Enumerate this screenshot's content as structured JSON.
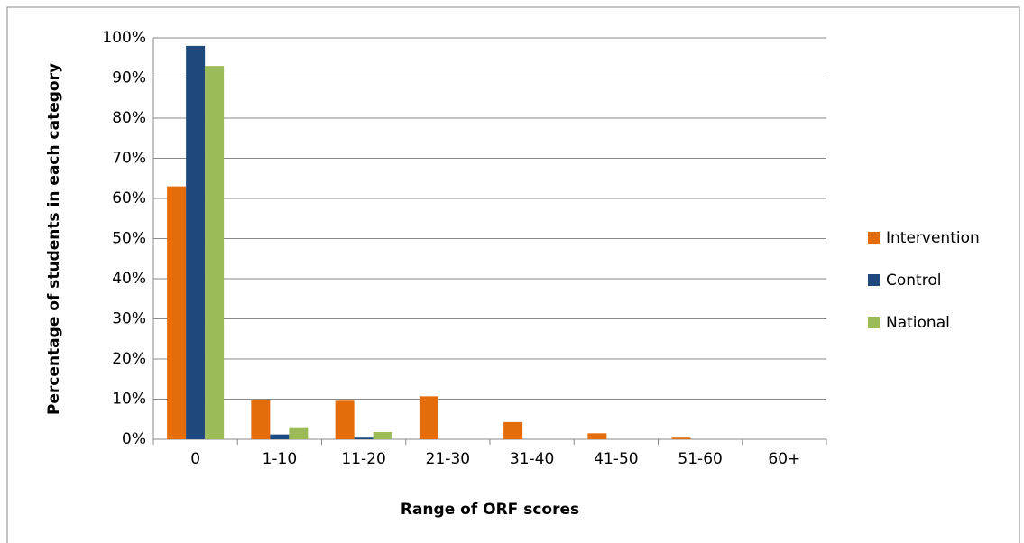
{
  "chart_data": {
    "type": "bar",
    "y_label": "Percentage of students in each category",
    "x_label": "Range of ORF scores",
    "categories": [
      "0",
      "1-10",
      "11-20",
      "21-30",
      "31-40",
      "41-50",
      "51-60",
      "60+"
    ],
    "series": [
      {
        "name": "Intervention",
        "color": "#e46c0a",
        "values": [
          63,
          9.7,
          9.6,
          10.7,
          4.3,
          1.5,
          0.4,
          0
        ]
      },
      {
        "name": "Control",
        "color": "#1f497d",
        "values": [
          98,
          1.2,
          0.4,
          0,
          0,
          0,
          0,
          0
        ]
      },
      {
        "name": "National",
        "color": "#9bbb59",
        "values": [
          93,
          3,
          1.8,
          0,
          0,
          0,
          0,
          0
        ]
      }
    ],
    "ylim": [
      0,
      100
    ],
    "yticks": [
      {
        "value": 0,
        "label": "0%"
      },
      {
        "value": 10,
        "label": "10%"
      },
      {
        "value": 20,
        "label": "20%"
      },
      {
        "value": 30,
        "label": "30%"
      },
      {
        "value": 40,
        "label": "40%"
      },
      {
        "value": 50,
        "label": "50%"
      },
      {
        "value": 60,
        "label": "60%"
      },
      {
        "value": 70,
        "label": "70%"
      },
      {
        "value": 80,
        "label": "80%"
      },
      {
        "value": 90,
        "label": "90%"
      },
      {
        "value": 100,
        "label": "100%"
      }
    ],
    "grid": true,
    "legend": "right"
  }
}
